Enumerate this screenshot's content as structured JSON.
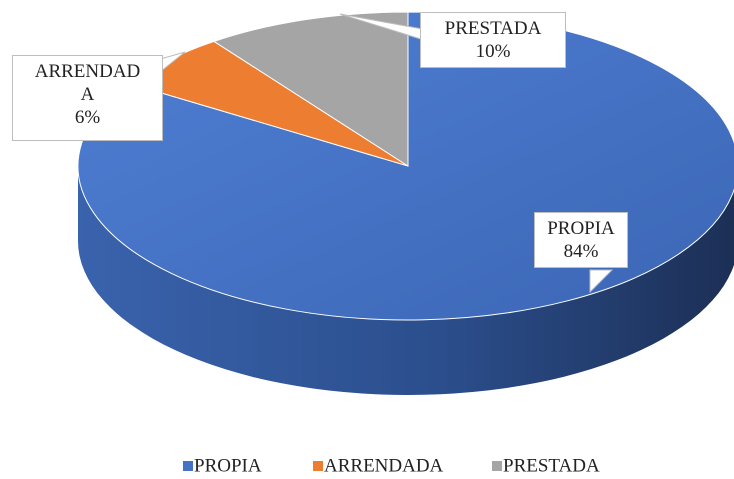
{
  "chart_data": {
    "type": "pie3d",
    "categories": [
      "PROPIA",
      "ARRENDADA",
      "PRESTADA"
    ],
    "values": [
      84,
      6,
      10
    ],
    "value_labels": [
      "84%",
      "6%",
      "10%"
    ],
    "colors": [
      "#4472c4",
      "#ed7d31",
      "#a5a5a5"
    ],
    "legend": "bottom"
  }
}
